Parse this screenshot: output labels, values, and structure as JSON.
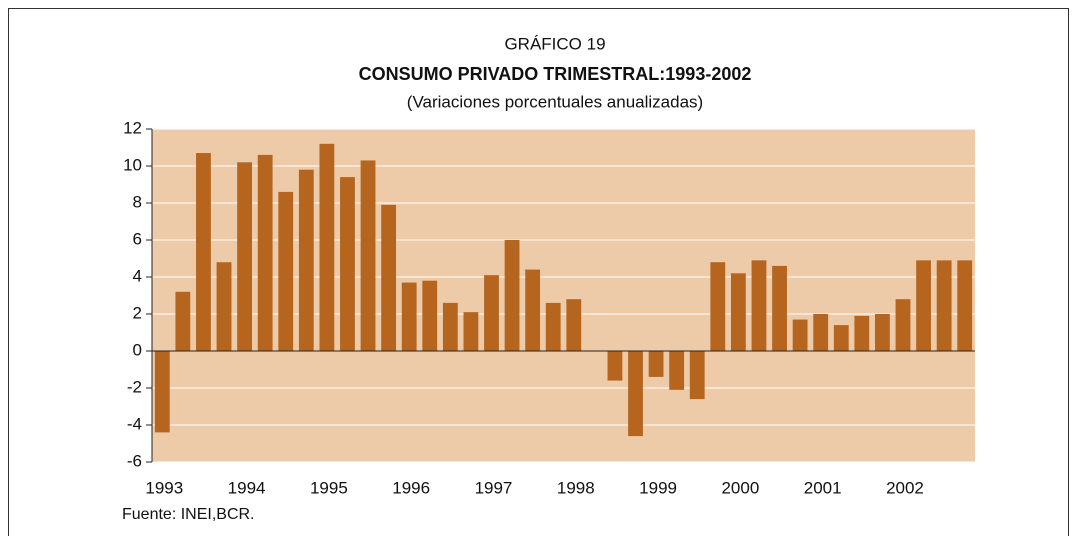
{
  "chart_data": {
    "type": "bar",
    "pretitle": "GRÁFICO 19",
    "title": "CONSUMO PRIVADO TRIMESTRAL:1993-2002",
    "subtitle": "(Variaciones porcentuales anualizadas)",
    "source": "Fuente: INEI,BCR.",
    "categories": [
      "1993",
      null,
      null,
      null,
      "1994",
      null,
      null,
      null,
      "1995",
      null,
      null,
      null,
      "1996",
      null,
      null,
      null,
      "1997",
      null,
      null,
      null,
      "1998",
      null,
      null,
      null,
      "1999",
      null,
      null,
      null,
      "2000",
      null,
      null,
      null,
      "2001",
      null,
      null,
      null,
      "2002",
      null,
      null,
      null
    ],
    "values": [
      -4.4,
      3.2,
      10.7,
      4.8,
      10.2,
      10.6,
      8.6,
      9.8,
      11.2,
      9.4,
      10.3,
      7.9,
      3.7,
      3.8,
      2.6,
      2.1,
      4.1,
      6.0,
      4.4,
      2.6,
      2.8,
      0,
      -1.6,
      -4.6,
      -1.4,
      -2.1,
      -2.6,
      4.8,
      4.2,
      4.9,
      4.6,
      1.7,
      2.0,
      1.4,
      1.9,
      2.0,
      2.8,
      4.9,
      4.9,
      4.9
    ],
    "color": "#b5651e",
    "background": "#edcba9",
    "ylim": [
      -6,
      12
    ],
    "yticks": [
      -6,
      -4,
      -2,
      0,
      2,
      4,
      6,
      8,
      10,
      12
    ],
    "grid": true
  }
}
